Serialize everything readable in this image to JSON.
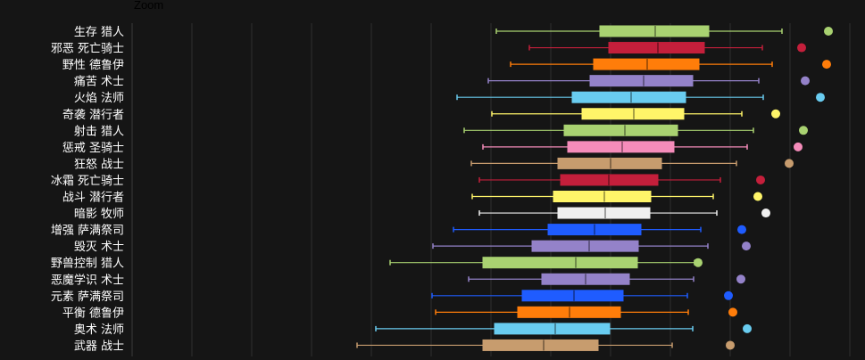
{
  "zoom_label": "Zoom",
  "chart_data": {
    "type": "boxplot",
    "orientation": "horizontal",
    "grid": true,
    "categories": [
      "生存 猎人",
      "邪恶 死亡骑士",
      "野性 德鲁伊",
      "痛苦 术士",
      "火焰 法师",
      "奇袭 潜行者",
      "射击 猎人",
      "惩戒 圣骑士",
      "狂怒 战士",
      "冰霜 死亡骑士",
      "战斗 潜行者",
      "暗影 牧师",
      "增强 萨满祭司",
      "毁灭 术士",
      "野兽控制 猎人",
      "恶魔学识 术士",
      "元素 萨满祭司",
      "平衡 德鲁伊",
      "奥术 法师",
      "武器 战士"
    ],
    "colors": [
      "#a9d271",
      "#c41f3b",
      "#ff7d0a",
      "#9482c9",
      "#69ccf0",
      "#fff569",
      "#a9d271",
      "#f58cba",
      "#c79c6e",
      "#c41f3b",
      "#fff569",
      "#f0f0f0",
      "#1f5cff",
      "#9482c9",
      "#a9d271",
      "#9482c9",
      "#1f5cff",
      "#ff7d0a",
      "#69ccf0",
      "#c79c6e"
    ],
    "stats": [
      {
        "min": 556,
        "q1": 672,
        "median": 734,
        "q3": 794,
        "max": 876,
        "outlier": 928
      },
      {
        "min": 593,
        "q1": 682,
        "median": 737,
        "q3": 789,
        "max": 854,
        "outlier": 898
      },
      {
        "min": 572,
        "q1": 665,
        "median": 725,
        "q3": 783,
        "max": 865,
        "outlier": 926
      },
      {
        "min": 547,
        "q1": 661,
        "median": 721,
        "q3": 776,
        "max": 850,
        "outlier": 902
      },
      {
        "min": 512,
        "q1": 641,
        "median": 707,
        "q3": 768,
        "max": 855,
        "outlier": 919
      },
      {
        "min": 551,
        "q1": 652,
        "median": 710,
        "q3": 766,
        "max": 831,
        "outlier": 869
      },
      {
        "min": 520,
        "q1": 632,
        "median": 700,
        "q3": 759,
        "max": 844,
        "outlier": 900
      },
      {
        "min": 541,
        "q1": 636,
        "median": 697,
        "q3": 755,
        "max": 837,
        "outlier": 894
      },
      {
        "min": 528,
        "q1": 625,
        "median": 684,
        "q3": 741,
        "max": 825,
        "outlier": 884
      },
      {
        "min": 537,
        "q1": 628,
        "median": 682,
        "q3": 737,
        "max": 807,
        "outlier": 852
      },
      {
        "min": 529,
        "q1": 620,
        "median": 677,
        "q3": 729,
        "max": 799,
        "outlier": 849
      },
      {
        "min": 537,
        "q1": 625,
        "median": 678,
        "q3": 728,
        "max": 803,
        "outlier": 858
      },
      {
        "min": 508,
        "q1": 614,
        "median": 666,
        "q3": 718,
        "max": 785,
        "outlier": 831
      },
      {
        "min": 485,
        "q1": 596,
        "median": 660,
        "q3": 715,
        "max": 793,
        "outlier": 836
      },
      {
        "min": 437,
        "q1": 541,
        "median": 645,
        "q3": 714,
        "max": 778,
        "outlier": 782
      },
      {
        "min": 525,
        "q1": 607,
        "median": 656,
        "q3": 705,
        "max": 777,
        "outlier": 830
      },
      {
        "min": 484,
        "q1": 585,
        "median": 643,
        "q3": 698,
        "max": 770,
        "outlier": 816
      },
      {
        "min": 488,
        "q1": 580,
        "median": 638,
        "q3": 695,
        "max": 771,
        "outlier": 821
      },
      {
        "min": 421,
        "q1": 554,
        "median": 622,
        "q3": 683,
        "max": 776,
        "outlier": 837
      },
      {
        "min": 400,
        "q1": 541,
        "median": 609,
        "q3": 670,
        "max": 753,
        "outlier": 818
      }
    ]
  }
}
